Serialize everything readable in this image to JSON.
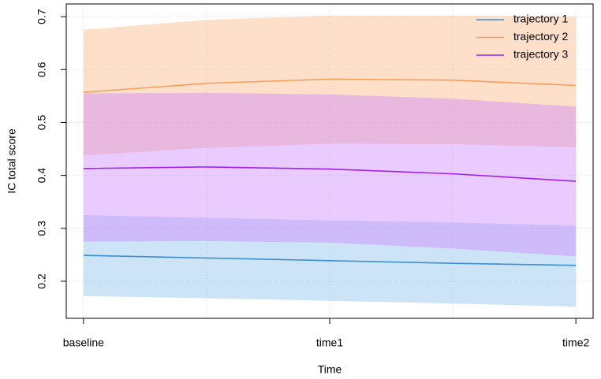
{
  "chart_data": {
    "type": "band-line",
    "x_label": "Time",
    "y_label": "IC total score",
    "x": [
      0,
      0.5,
      1,
      1.5,
      2
    ],
    "xlim": [
      -0.07,
      2.07
    ],
    "xticks": [
      {
        "value": 0,
        "label": "baseline"
      },
      {
        "value": 1,
        "label": "time1"
      },
      {
        "value": 2,
        "label": "time2"
      }
    ],
    "xgrid": [
      0,
      0.5,
      1,
      1.5,
      2
    ],
    "ylim": [
      0.13,
      0.724
    ],
    "yticks": [
      0.2,
      0.3,
      0.4,
      0.5,
      0.6,
      0.7
    ],
    "grid": true,
    "legend": "top-right",
    "series": [
      {
        "name": "trajectory 1",
        "color": "#3a8fd0",
        "band_color": "rgba(135,190,235,0.42)",
        "values": [
          0.249,
          0.244,
          0.239,
          0.234,
          0.23
        ],
        "lower": [
          0.172,
          0.168,
          0.163,
          0.158,
          0.152
        ],
        "upper": [
          0.325,
          0.32,
          0.315,
          0.311,
          0.305
        ]
      },
      {
        "name": "trajectory 2",
        "color": "#f5a05a",
        "band_color": "rgba(252,185,135,0.45)",
        "values": [
          0.557,
          0.574,
          0.582,
          0.58,
          0.57
        ],
        "lower": [
          0.438,
          0.452,
          0.46,
          0.459,
          0.453
        ],
        "upper": [
          0.675,
          0.694,
          0.702,
          0.702,
          0.7
        ]
      },
      {
        "name": "trajectory 3",
        "color": "#a020f0",
        "band_color": "rgba(205,130,255,0.42)",
        "values": [
          0.413,
          0.416,
          0.412,
          0.403,
          0.389
        ],
        "lower": [
          0.275,
          0.276,
          0.273,
          0.262,
          0.247
        ],
        "upper": [
          0.555,
          0.556,
          0.553,
          0.545,
          0.53
        ]
      }
    ]
  }
}
